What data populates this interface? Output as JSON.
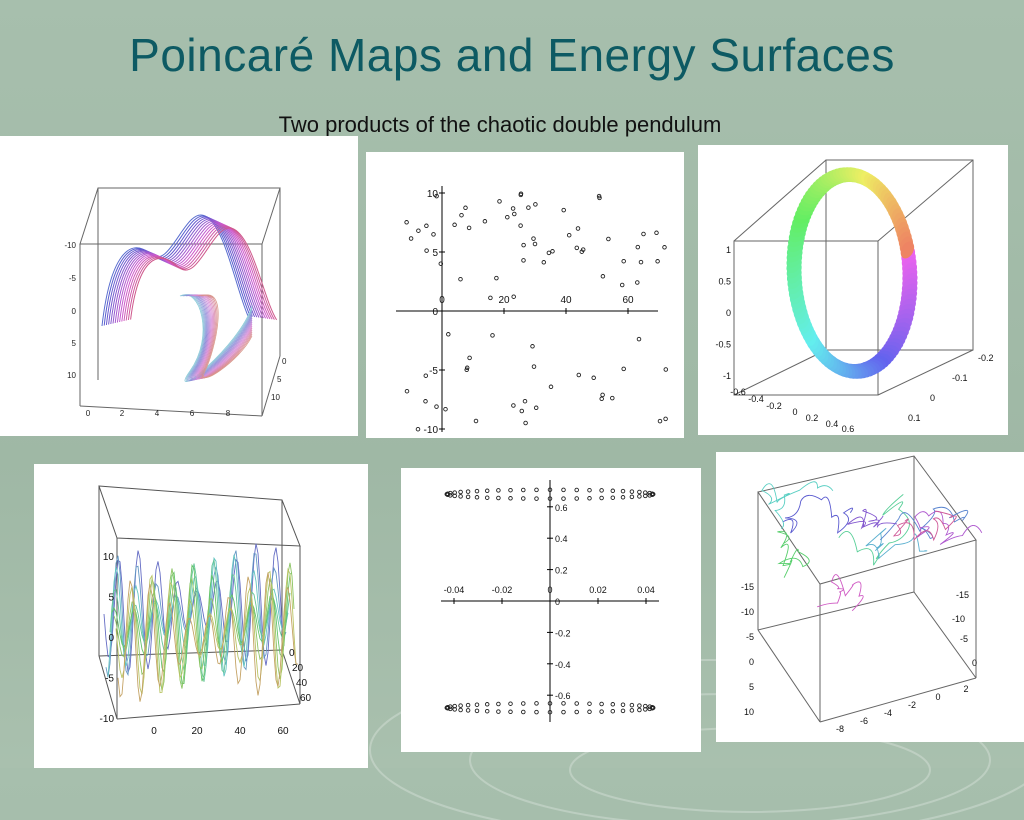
{
  "slide": {
    "title": "Poincaré Maps and Energy Surfaces",
    "subtitle": "Two products of the chaotic double pendulum"
  },
  "background": {
    "color": "#a3bba9",
    "title_color": "#0d5a63"
  },
  "panels": [
    {
      "id": "p1",
      "kind": "3d-trajectory",
      "ticks_z": [
        "-10",
        "-5",
        "0",
        "5",
        "10"
      ],
      "ticks_x": [
        "0",
        "2",
        "4",
        "6",
        "8"
      ],
      "ticks_y": [
        "0",
        "5",
        "10"
      ]
    },
    {
      "id": "p2",
      "kind": "scatter",
      "ticks_x": [
        "0",
        "20",
        "40",
        "60"
      ],
      "ticks_y": [
        "10",
        "5",
        "0",
        "-5",
        "-10"
      ]
    },
    {
      "id": "p3",
      "kind": "3d-ring",
      "ticks_z": [
        "1",
        "0.5",
        "0",
        "-0.5",
        "-1"
      ],
      "ticks_x": [
        "-0.6",
        "-0.4",
        "-0.2",
        "0",
        "0.2",
        "0.4",
        "0.6"
      ],
      "ticks_y": [
        "-0.2",
        "-0.1",
        "0",
        "0.1"
      ]
    },
    {
      "id": "p4",
      "kind": "3d-oscillation",
      "ticks_z": [
        "10",
        "5",
        "0",
        "-5",
        "-10"
      ],
      "ticks_x": [
        "0",
        "20",
        "40",
        "60"
      ],
      "ticks_y": [
        "0",
        "20",
        "40",
        "60"
      ]
    },
    {
      "id": "p5",
      "kind": "scatter",
      "ticks_x": [
        "-0.04",
        "-0.02",
        "0",
        "0.02",
        "0.04"
      ],
      "ticks_y": [
        "0.6",
        "0.4",
        "0.2",
        "0",
        "-0.2",
        "-0.4",
        "-0.6"
      ]
    },
    {
      "id": "p6",
      "kind": "3d-trajectory",
      "ticks_z": [
        "-15",
        "-10",
        "-5",
        "0",
        "5",
        "10"
      ],
      "ticks_x": [
        "-8",
        "-6",
        "-4",
        "-2",
        "0",
        "2"
      ],
      "ticks_y": [
        "-15",
        "-10",
        "-5",
        "0"
      ]
    }
  ]
}
